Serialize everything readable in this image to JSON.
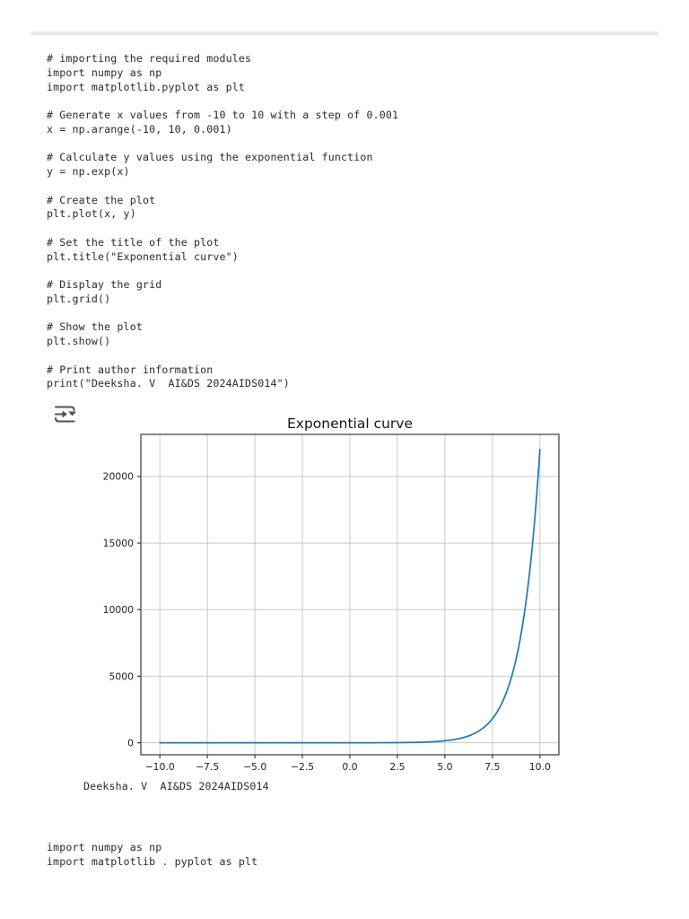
{
  "document": {
    "code_main": "# importing the required modules\nimport numpy as np\nimport matplotlib.pyplot as plt\n\n# Generate x values from -10 to 10 with a step of 0.001\nx = np.arange(-10, 10, 0.001)\n\n# Calculate y values using the exponential function\ny = np.exp(x)\n\n# Create the plot\nplt.plot(x, y)\n\n# Set the title of the plot\nplt.title(\"Exponential curve\")\n\n# Display the grid\nplt.grid()\n\n# Show the plot\nplt.show()\n\n# Print author information\nprint(\"Deeksha. V  AI&DS 2024AIDS014\")",
    "print_output": "Deeksha. V  AI&DS 2024AIDS014",
    "code_imports": "import numpy as np\nimport matplotlib . pyplot as plt"
  },
  "icons": {
    "figure_left_icon": "insert-output-dropdown-icon"
  },
  "colors": {
    "curve": "#2277b4",
    "grid": "#c9c9c9",
    "axis": "#3a3a3a",
    "tick_text": "#1f1f1f",
    "title_text": "#151515",
    "code_text": "#2a2a2a",
    "separator": "#e9e9e9",
    "icon": "#4f4f4f"
  },
  "chart_data": {
    "type": "line",
    "title": "Exponential curve",
    "xlabel": "",
    "ylabel": "",
    "grid": true,
    "legend": null,
    "x_expression": "x = np.arange(-10, 10, 0.001)",
    "y_expression": "y = np.exp(x)",
    "series": [
      {
        "name": "np.exp(x)",
        "fn": "exp",
        "color": "#2277b4",
        "key_points": [
          {
            "x": -10,
            "y": 4.54e-05
          },
          {
            "x": -5,
            "y": 0.0067
          },
          {
            "x": 0,
            "y": 1
          },
          {
            "x": 2.5,
            "y": 12.18
          },
          {
            "x": 5,
            "y": 148.41
          },
          {
            "x": 7.5,
            "y": 1808.04
          },
          {
            "x": 9,
            "y": 8103.08
          },
          {
            "x": 10,
            "y": 22026.47
          }
        ]
      }
    ],
    "x_range": [
      -10,
      10
    ],
    "render_step": 0.05,
    "xticks": [
      -10.0,
      -7.5,
      -5.0,
      -2.5,
      0.0,
      2.5,
      5.0,
      7.5,
      10.0
    ],
    "xtick_labels": [
      "−10.0",
      "−7.5",
      "−5.0",
      "−2.5",
      "0.0",
      "2.5",
      "5.0",
      "7.5",
      "10.0"
    ],
    "yticks": [
      0,
      5000,
      10000,
      15000,
      20000
    ],
    "ytick_labels": [
      "0",
      "5000",
      "10000",
      "15000",
      "20000"
    ],
    "xlim": [
      -11,
      11
    ],
    "ylim": [
      -900,
      23160
    ]
  }
}
